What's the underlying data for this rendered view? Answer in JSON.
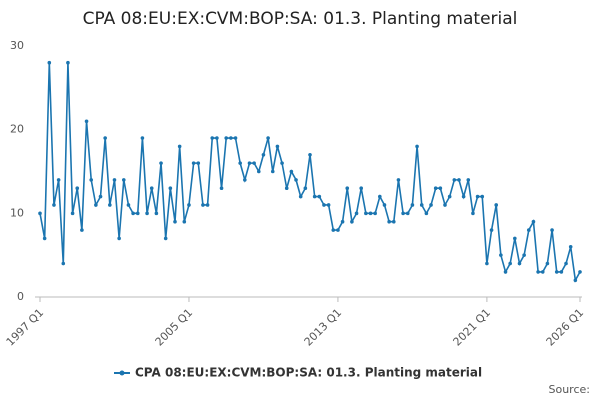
{
  "chart_data": {
    "type": "line",
    "title": "CPA 08:EU:EX:CVM:BOP:SA: 01.3. Planting material",
    "source": "Source:",
    "categories": [
      "1997 Q1",
      null,
      null,
      null,
      null,
      null,
      null,
      null,
      null,
      null,
      null,
      null,
      null,
      null,
      null,
      null,
      null,
      null,
      null,
      null,
      null,
      null,
      null,
      null,
      null,
      null,
      null,
      null,
      null,
      null,
      null,
      null,
      "2005 Q1",
      null,
      null,
      null,
      null,
      null,
      null,
      null,
      null,
      null,
      null,
      null,
      null,
      null,
      null,
      null,
      null,
      null,
      null,
      null,
      null,
      null,
      null,
      null,
      null,
      null,
      null,
      null,
      null,
      null,
      null,
      null,
      "2013 Q1",
      null,
      null,
      null,
      null,
      null,
      null,
      null,
      null,
      null,
      null,
      null,
      null,
      null,
      null,
      null,
      null,
      null,
      null,
      null,
      null,
      null,
      null,
      null,
      null,
      null,
      null,
      null,
      null,
      null,
      null,
      null,
      "2021 Q1",
      null,
      null,
      null,
      null,
      null,
      null,
      null,
      null,
      null,
      null,
      null,
      null,
      null,
      null,
      null,
      null,
      null,
      null,
      null,
      "2026 Q1"
    ],
    "series": [
      {
        "name": "CPA 08:EU:EX:CVM:BOP:SA: 01.3. Planting material",
        "color": "#1b75b0",
        "values": [
          10,
          7,
          28,
          11,
          14,
          4,
          28,
          10,
          13,
          8,
          21,
          14,
          11,
          12,
          19,
          11,
          14,
          7,
          14,
          11,
          10,
          10,
          19,
          10,
          13,
          10,
          16,
          7,
          13,
          9,
          18,
          9,
          11,
          16,
          16,
          11,
          11,
          19,
          19,
          13,
          19,
          19,
          19,
          16,
          14,
          16,
          16,
          15,
          17,
          19,
          15,
          18,
          16,
          13,
          15,
          14,
          12,
          13,
          17,
          12,
          12,
          11,
          11,
          8,
          8,
          9,
          13,
          9,
          10,
          13,
          10,
          10,
          10,
          12,
          11,
          9,
          9,
          14,
          10,
          10,
          11,
          18,
          11,
          10,
          11,
          13,
          13,
          11,
          12,
          14,
          14,
          12,
          14,
          10,
          12,
          12,
          4,
          8,
          11,
          5,
          3,
          4,
          7,
          4,
          5,
          8,
          9,
          3,
          3,
          4,
          8,
          3,
          3,
          4,
          6,
          2,
          3
        ]
      }
    ],
    "ylim": [
      0,
      30
    ],
    "yticks": [
      0,
      10,
      20,
      30
    ],
    "grid": false,
    "legend": "bottom"
  }
}
